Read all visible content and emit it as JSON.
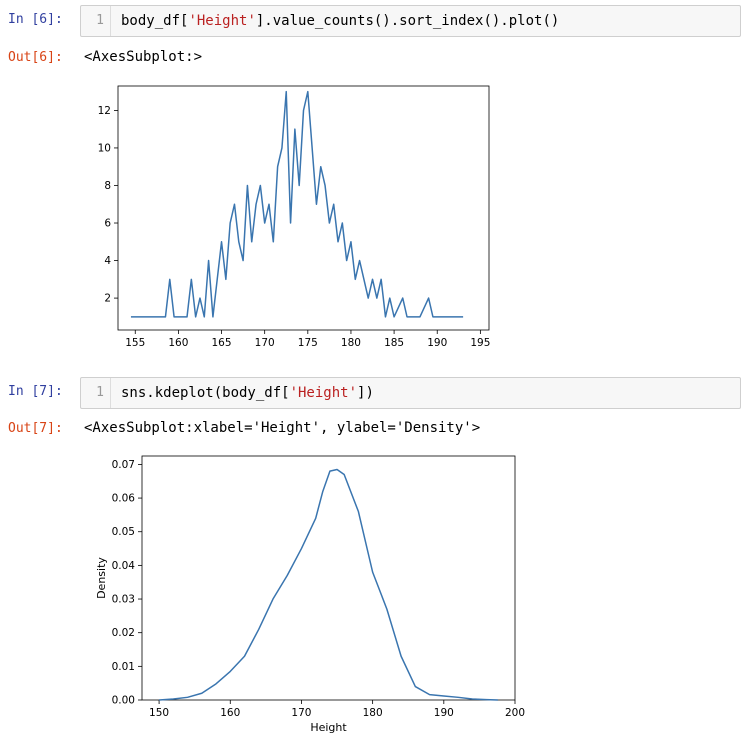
{
  "cells": [
    {
      "in_prompt": "In [6]:",
      "line_number": "1",
      "code": {
        "pre": "body_df[",
        "string": "'Height'",
        "post": "].value_counts().sort_index().plot()"
      },
      "out_prompt": "Out[6]:",
      "output_text": "<AxesSubplot:>"
    },
    {
      "in_prompt": "In [7]:",
      "line_number": "1",
      "code": {
        "pre": "sns.kdeplot(body_df[",
        "string": "'Height'",
        "post": "])"
      },
      "out_prompt": "Out[7]:",
      "output_text": "<AxesSubplot:xlabel='Height', ylabel='Density'>"
    }
  ],
  "chart_data": [
    {
      "type": "line",
      "title": "",
      "xlabel": "",
      "ylabel": "",
      "xlim": [
        153,
        196
      ],
      "ylim": [
        0.3,
        13.3
      ],
      "xticks": [
        155,
        160,
        165,
        170,
        175,
        180,
        185,
        190,
        195
      ],
      "yticks": [
        2,
        4,
        6,
        8,
        10,
        12
      ],
      "color": "#3a75af",
      "x": [
        154.5,
        158.5,
        159.0,
        159.5,
        160.0,
        161.0,
        161.5,
        162.0,
        162.5,
        163.0,
        163.5,
        164.0,
        164.5,
        165.0,
        165.5,
        166.0,
        166.5,
        167.0,
        167.5,
        168.0,
        168.5,
        169.0,
        169.5,
        170.0,
        170.5,
        171.0,
        171.5,
        172.0,
        172.5,
        173.0,
        173.5,
        174.0,
        174.5,
        175.0,
        175.5,
        176.0,
        176.5,
        177.0,
        177.5,
        178.0,
        178.5,
        179.0,
        179.5,
        180.0,
        180.5,
        181.0,
        181.5,
        182.0,
        182.5,
        183.0,
        183.5,
        184.0,
        184.5,
        185.0,
        186.0,
        186.5,
        187.0,
        188.0,
        189.0,
        189.5,
        190.0,
        193.0
      ],
      "values": [
        1,
        1,
        3,
        1,
        1,
        1,
        3,
        1,
        2,
        1,
        4,
        1,
        3,
        5,
        3,
        6,
        7,
        5,
        4,
        8,
        5,
        7,
        8,
        6,
        7,
        5,
        9,
        10,
        13,
        6,
        11,
        8,
        12,
        13,
        10,
        7,
        9,
        8,
        6,
        7,
        5,
        6,
        4,
        5,
        3,
        4,
        3,
        2,
        3,
        2,
        3,
        1,
        2,
        1,
        2,
        1,
        1,
        1,
        2,
        1,
        1,
        1
      ]
    },
    {
      "type": "line",
      "title": "",
      "xlabel": "Height",
      "ylabel": "Density",
      "xlim": [
        147.6,
        200
      ],
      "ylim": [
        0,
        0.0725
      ],
      "xticks": [
        150,
        160,
        170,
        180,
        190,
        200
      ],
      "yticks": [
        0.0,
        0.01,
        0.02,
        0.03,
        0.04,
        0.05,
        0.06,
        0.07
      ],
      "ytick_labels": [
        "0.00",
        "0.01",
        "0.02",
        "0.03",
        "0.04",
        "0.05",
        "0.06",
        "0.07"
      ],
      "color": "#3a75af",
      "x": [
        150,
        152,
        154,
        156,
        158,
        160,
        162,
        164,
        166,
        168,
        170,
        172,
        173,
        174,
        175,
        176,
        178,
        180,
        182,
        184,
        186,
        188,
        190,
        192,
        194,
        196,
        197.6
      ],
      "values": [
        0.0,
        0.0003,
        0.0008,
        0.002,
        0.0048,
        0.0085,
        0.013,
        0.021,
        0.03,
        0.037,
        0.045,
        0.054,
        0.062,
        0.068,
        0.0685,
        0.067,
        0.056,
        0.038,
        0.027,
        0.013,
        0.004,
        0.0016,
        0.0012,
        0.0008,
        0.0003,
        0.0001,
        0.0
      ]
    }
  ]
}
